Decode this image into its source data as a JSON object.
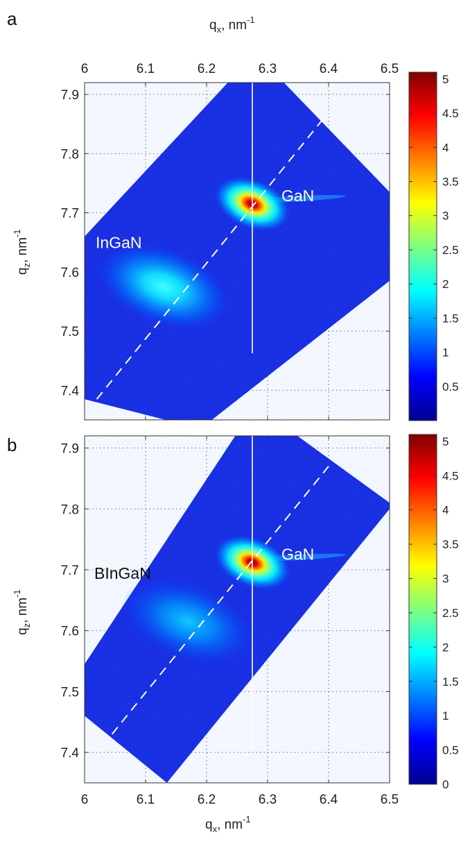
{
  "chart_data": [
    {
      "type": "heatmap",
      "panel_label": "a",
      "title": "",
      "xlabel": "q",
      "xlabel_sub": "x",
      "xlabel_unit": ", nm",
      "xlabel_sup": "-1",
      "xlabel_position": "top",
      "ylabel": "q",
      "ylabel_sub": "z",
      "ylabel_unit": ", nm",
      "ylabel_sup": "-1",
      "xlim": [
        6.0,
        6.5
      ],
      "ylim": [
        7.35,
        7.92
      ],
      "xticks": [
        "6",
        "6.1",
        "6.2",
        "6.3",
        "6.4",
        "6.5"
      ],
      "yticks": [
        "7.4",
        "7.5",
        "7.6",
        "7.7",
        "7.8",
        "7.9"
      ],
      "grid": true,
      "colorbar": {
        "min": 0,
        "max": 5.1,
        "ticks": [
          "0.5",
          "1",
          "1.5",
          "2",
          "2.5",
          "3",
          "3.5",
          "4",
          "4.5",
          "5"
        ],
        "colormap": "jet"
      },
      "scan_region": [
        [
          6.0,
          7.385
        ],
        [
          6.0,
          7.66
        ],
        [
          6.28,
          7.97
        ],
        [
          6.5,
          7.735
        ],
        [
          6.5,
          7.585
        ],
        [
          6.19,
          7.335
        ]
      ],
      "peaks": [
        {
          "name": "GaN",
          "qx": 6.275,
          "qz": 7.715,
          "intensity": 5.0
        },
        {
          "name": "InGaN",
          "qx": 6.13,
          "qz": 7.575,
          "intensity": 1.7
        }
      ],
      "vertical_line_qx": 6.275,
      "dashed_line": [
        [
          6.02,
          7.385
        ],
        [
          6.4,
          7.87
        ]
      ],
      "annotations": [
        "GaN",
        "InGaN"
      ]
    },
    {
      "type": "heatmap",
      "panel_label": "b",
      "title": "",
      "xlabel": "q",
      "xlabel_sub": "x",
      "xlabel_unit": ", nm",
      "xlabel_sup": "-1",
      "xlabel_position": "bottom",
      "ylabel": "q",
      "ylabel_sub": "z",
      "ylabel_unit": ", nm",
      "ylabel_sup": "-1",
      "xlim": [
        6.0,
        6.5
      ],
      "ylim": [
        7.35,
        7.92
      ],
      "xticks": [
        "6",
        "6.1",
        "6.2",
        "6.3",
        "6.4",
        "6.5"
      ],
      "yticks": [
        "7.4",
        "7.5",
        "7.6",
        "7.7",
        "7.8",
        "7.9"
      ],
      "grid": true,
      "colorbar": {
        "min": 0,
        "max": 5.1,
        "ticks": [
          "0",
          "0.5",
          "1",
          "1.5",
          "2",
          "2.5",
          "3",
          "3.5",
          "4",
          "4.5",
          "5"
        ],
        "colormap": "jet"
      },
      "scan_region": [
        [
          6.0,
          7.46
        ],
        [
          6.0,
          7.545
        ],
        [
          6.28,
          7.97
        ],
        [
          6.5,
          7.81
        ],
        [
          6.5,
          7.8
        ],
        [
          6.135,
          7.35
        ]
      ],
      "peaks": [
        {
          "name": "GaN",
          "qx": 6.275,
          "qz": 7.712,
          "intensity": 5.0
        },
        {
          "name": "BInGaN",
          "qx": 6.17,
          "qz": 7.615,
          "intensity": 1.3
        }
      ],
      "vertical_line_qx": 6.275,
      "dashed_line": [
        [
          6.045,
          7.43
        ],
        [
          6.4,
          7.87
        ]
      ],
      "annotations": [
        "GaN",
        "BInGaN"
      ]
    }
  ]
}
